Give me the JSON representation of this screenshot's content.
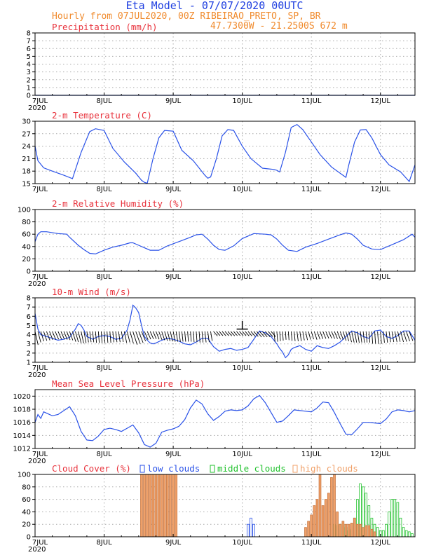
{
  "header": {
    "title": "Eta Model - 07/07/2020 00UTC",
    "line1": "Hourly from 07JUL2020, 00Z  RIBEIRAO_PRETO, SP, BR",
    "line2": "47.7300W - 21.2500S    672  m"
  },
  "x_axis": {
    "labels": [
      "7JUL",
      "8JUL",
      "9JUL",
      "10JUL",
      "11JUL",
      "12JUL"
    ],
    "year_label": "2020",
    "hours_total": 132
  },
  "colors": {
    "title": "#1f3fe0",
    "subtitle": "#f08a2c",
    "panel_title": "#e8323c",
    "line": "#2a52e8",
    "arrow": "#000000",
    "low_clouds": "#2a52e8",
    "middle_clouds": "#22c22e",
    "high_clouds": "#f0a068"
  },
  "chart_data": [
    {
      "id": "precip",
      "type": "line",
      "title": "Precipitation (mm/h)",
      "ylim": [
        0,
        8
      ],
      "yticks": [
        0,
        1,
        2,
        3,
        4,
        5,
        6,
        7,
        8
      ],
      "x": [
        0,
        132
      ],
      "values": [
        0,
        0
      ]
    },
    {
      "id": "temp",
      "type": "line",
      "title": "2-m Temperature (C)",
      "ylim": [
        15,
        30
      ],
      "yticks": [
        15,
        18,
        21,
        24,
        27,
        30
      ],
      "x": [
        0,
        1,
        3,
        6,
        10,
        13,
        16,
        19,
        21,
        24,
        27,
        31,
        35,
        37,
        38,
        39,
        41,
        43,
        45,
        48,
        51,
        55,
        59,
        60,
        61,
        63,
        65,
        67,
        69,
        72,
        75,
        79,
        83,
        84,
        85,
        87,
        89,
        91,
        93,
        96,
        99,
        103,
        107,
        108,
        109,
        111,
        113,
        115,
        117,
        120,
        123,
        127,
        130,
        132
      ],
      "values": [
        24.0,
        20.5,
        18.8,
        18.0,
        17.0,
        16.2,
        22.5,
        27.5,
        28.2,
        27.8,
        23.5,
        20.2,
        17.5,
        15.8,
        15.3,
        15.1,
        21.0,
        26.0,
        27.8,
        27.6,
        23.0,
        20.5,
        17.0,
        16.3,
        16.6,
        21.0,
        26.5,
        28.0,
        27.8,
        24.0,
        21.0,
        18.7,
        18.4,
        18.2,
        17.8,
        22.5,
        28.5,
        29.2,
        28.0,
        25.0,
        22.0,
        19.0,
        17.0,
        16.5,
        19.5,
        25.0,
        27.9,
        28.0,
        26.0,
        22.0,
        19.5,
        17.8,
        15.5,
        19.5
      ]
    },
    {
      "id": "rh",
      "type": "line",
      "title": "2-m Relative Humidity (%)",
      "ylim": [
        0,
        100
      ],
      "yticks": [
        0,
        20,
        40,
        60,
        80,
        100
      ],
      "x": [
        0,
        1,
        2,
        4,
        8,
        11,
        12,
        15,
        17,
        19,
        21,
        24,
        27,
        30,
        33,
        34,
        36,
        38,
        40,
        43,
        46,
        50,
        54,
        56,
        58,
        60,
        62,
        64,
        66,
        69,
        72,
        76,
        80,
        82,
        84,
        86,
        88,
        91,
        94,
        98,
        102,
        106,
        108,
        110,
        112,
        114,
        117,
        120,
        124,
        128,
        131,
        132
      ],
      "values": [
        48,
        60,
        64,
        64,
        61,
        60,
        55,
        42,
        35,
        29,
        28,
        34,
        39,
        42,
        46,
        46,
        42,
        38,
        34,
        34,
        41,
        48,
        55,
        59,
        60,
        52,
        42,
        35,
        34,
        41,
        53,
        61,
        60,
        59,
        52,
        42,
        34,
        32,
        39,
        45,
        52,
        59,
        62,
        60,
        52,
        42,
        36,
        35,
        43,
        51,
        60,
        55
      ]
    },
    {
      "id": "wind",
      "type": "line",
      "title": "10-m Wind (m/s)",
      "ylim": [
        1,
        8
      ],
      "yticks": [
        1,
        2,
        3,
        4,
        5,
        6,
        7,
        8
      ],
      "x": [
        0,
        1,
        2,
        4,
        6,
        8,
        10,
        12,
        14,
        15,
        16,
        17,
        18,
        20,
        22,
        24,
        26,
        28,
        30,
        32,
        33,
        34,
        35,
        36,
        37,
        38,
        39,
        40,
        41,
        42,
        44,
        46,
        48,
        50,
        52,
        54,
        56,
        58,
        60,
        62,
        64,
        66,
        68,
        70,
        72,
        74,
        76,
        78,
        80,
        82,
        84,
        85,
        86,
        87,
        88,
        89,
        90,
        92,
        94,
        96,
        98,
        100,
        102,
        104,
        106,
        108,
        110,
        112,
        114,
        116,
        118,
        120,
        122,
        124,
        126,
        128,
        130,
        132
      ],
      "values": [
        6.3,
        4.6,
        4.0,
        3.8,
        3.6,
        3.4,
        3.5,
        3.7,
        4.6,
        5.2,
        5.0,
        4.5,
        3.8,
        3.5,
        3.8,
        3.9,
        3.8,
        3.5,
        3.6,
        4.5,
        5.6,
        7.2,
        6.9,
        6.4,
        5.0,
        3.8,
        3.4,
        3.1,
        3.0,
        3.1,
        3.4,
        3.6,
        3.5,
        3.3,
        3.0,
        2.9,
        3.2,
        3.6,
        3.6,
        2.7,
        2.2,
        2.4,
        2.5,
        2.3,
        2.4,
        2.6,
        3.5,
        4.4,
        4.2,
        3.8,
        3.0,
        2.5,
        2.1,
        1.5,
        1.8,
        2.4,
        2.6,
        2.8,
        2.4,
        2.2,
        2.8,
        2.6,
        2.5,
        2.8,
        3.2,
        3.8,
        4.4,
        4.2,
        3.8,
        3.6,
        4.4,
        4.5,
        3.8,
        3.6,
        3.9,
        4.4,
        4.4,
        3.4
      ]
    },
    {
      "id": "mslp",
      "type": "line",
      "title": "Mean Sea Level Pressure (hPa)",
      "ylim": [
        1012,
        1021
      ],
      "yticks": [
        1012,
        1014,
        1016,
        1018,
        1020
      ],
      "x": [
        0,
        1,
        2,
        3,
        4,
        6,
        8,
        10,
        12,
        14,
        16,
        18,
        20,
        22,
        24,
        26,
        28,
        30,
        32,
        34,
        36,
        38,
        40,
        42,
        44,
        46,
        48,
        50,
        52,
        54,
        56,
        58,
        60,
        62,
        64,
        66,
        68,
        70,
        72,
        74,
        76,
        78,
        80,
        82,
        84,
        86,
        88,
        90,
        92,
        94,
        96,
        98,
        100,
        102,
        104,
        106,
        108,
        110,
        112,
        114,
        116,
        118,
        120,
        122,
        124,
        126,
        128,
        130,
        132
      ],
      "values": [
        1016.0,
        1017.2,
        1016.6,
        1017.6,
        1017.4,
        1017.0,
        1017.2,
        1017.8,
        1018.4,
        1017.0,
        1014.6,
        1013.3,
        1013.2,
        1013.9,
        1014.9,
        1015.1,
        1014.9,
        1014.6,
        1015.1,
        1015.6,
        1014.4,
        1012.6,
        1012.2,
        1012.8,
        1014.5,
        1014.8,
        1015.0,
        1015.4,
        1016.4,
        1018.2,
        1019.4,
        1018.8,
        1017.3,
        1016.3,
        1016.9,
        1017.7,
        1017.9,
        1017.8,
        1017.9,
        1018.5,
        1019.6,
        1020.1,
        1019.0,
        1017.5,
        1016.0,
        1016.2,
        1017.0,
        1017.9,
        1017.8,
        1017.7,
        1017.6,
        1018.2,
        1019.1,
        1019.0,
        1017.5,
        1015.8,
        1014.2,
        1014.1,
        1015.0,
        1016.0,
        1016.0,
        1015.9,
        1015.8,
        1016.5,
        1017.6,
        1017.9,
        1017.8,
        1017.6,
        1017.8
      ]
    },
    {
      "id": "cloud",
      "type": "bar",
      "title": "Cloud Cover (%)",
      "ylim": [
        0,
        100
      ],
      "yticks": [
        0,
        20,
        40,
        60,
        80,
        100
      ],
      "legend": [
        "low clouds",
        "middle clouds",
        "high clouds"
      ],
      "series": [
        {
          "name": "low clouds",
          "x": [
            74,
            75,
            76
          ],
          "values": [
            20,
            30,
            20
          ]
        },
        {
          "name": "middle clouds",
          "x": [
            104,
            105,
            106,
            107,
            108,
            109,
            110,
            111,
            112,
            113,
            114,
            115,
            116,
            117,
            118,
            119,
            120,
            121,
            122,
            123,
            124,
            125,
            126,
            127,
            128,
            129,
            130,
            131
          ],
          "values": [
            20,
            18,
            20,
            20,
            15,
            10,
            12,
            30,
            60,
            85,
            80,
            70,
            50,
            30,
            20,
            15,
            10,
            10,
            20,
            40,
            60,
            60,
            55,
            30,
            15,
            10,
            8,
            5
          ]
        },
        {
          "name": "high clouds",
          "x": [
            37,
            38,
            39,
            40,
            41,
            42,
            43,
            44,
            45,
            46,
            47,
            48,
            49,
            94,
            95,
            96,
            97,
            98,
            99,
            100,
            101,
            102,
            103,
            104,
            105,
            106,
            107,
            108,
            109,
            110,
            111,
            112,
            113,
            114,
            115,
            116,
            117,
            118
          ],
          "values": [
            100,
            100,
            100,
            100,
            100,
            100,
            100,
            100,
            100,
            100,
            100,
            100,
            100,
            15,
            25,
            35,
            50,
            60,
            100,
            50,
            60,
            70,
            95,
            100,
            40,
            20,
            25,
            20,
            20,
            22,
            30,
            20,
            20,
            15,
            18,
            18,
            12,
            8
          ]
        }
      ]
    }
  ]
}
